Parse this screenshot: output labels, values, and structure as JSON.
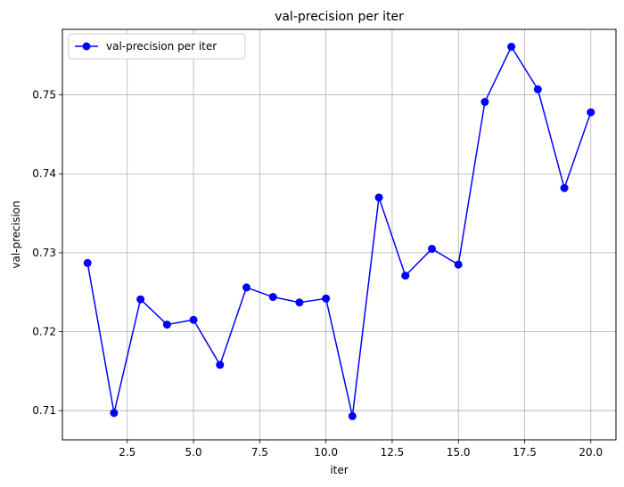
{
  "chart_data": {
    "type": "line",
    "title": "val-precision per iter",
    "xlabel": "iter",
    "ylabel": "val-precision",
    "xlim": [
      0.05,
      20.95
    ],
    "ylim": [
      0.7063,
      0.7583
    ],
    "x_ticks": [
      2.5,
      5.0,
      7.5,
      10.0,
      12.5,
      15.0,
      17.5,
      20.0
    ],
    "x_tick_labels": [
      "2.5",
      "5.0",
      "7.5",
      "10.0",
      "12.5",
      "15.0",
      "17.5",
      "20.0"
    ],
    "y_ticks": [
      0.71,
      0.72,
      0.73,
      0.74,
      0.75
    ],
    "y_tick_labels": [
      "0.71",
      "0.72",
      "0.73",
      "0.74",
      "0.75"
    ],
    "grid": true,
    "legend_position": "top-left",
    "series": [
      {
        "name": "val-precision per iter",
        "color": "#0000ff",
        "marker": "circle",
        "x": [
          1,
          2,
          3,
          4,
          5,
          6,
          7,
          8,
          9,
          10,
          11,
          12,
          13,
          14,
          15,
          16,
          17,
          18,
          19,
          20
        ],
        "y": [
          0.7287,
          0.7097,
          0.7241,
          0.7209,
          0.7215,
          0.7158,
          0.7256,
          0.7244,
          0.7237,
          0.7242,
          0.7093,
          0.737,
          0.7271,
          0.7305,
          0.7285,
          0.7491,
          0.7561,
          0.7507,
          0.7382,
          0.7478
        ]
      }
    ]
  }
}
